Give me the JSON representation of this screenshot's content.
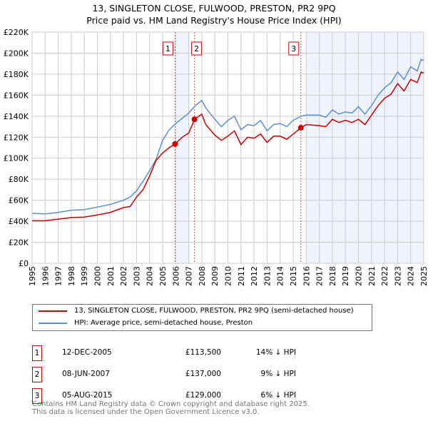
{
  "title": "13, SINGLETON CLOSE, FULWOOD, PRESTON, PR2 9PQ",
  "subtitle": "Price paid vs. HM Land Registry's House Price Index (HPI)",
  "chart_data": {
    "type": "line",
    "title": "13, SINGLETON CLOSE, FULWOOD, PRESTON, PR2 9PQ",
    "subtitle": "Price paid vs. HM Land Registry's House Price Index (HPI)",
    "xlim": [
      1995,
      2025
    ],
    "ylim": [
      0,
      220000
    ],
    "x_ticks": [
      "1995",
      "1996",
      "1997",
      "1998",
      "1999",
      "2000",
      "2001",
      "2002",
      "2003",
      "2004",
      "2005",
      "2006",
      "2007",
      "2008",
      "2009",
      "2010",
      "2011",
      "2012",
      "2013",
      "2014",
      "2015",
      "2016",
      "2017",
      "2018",
      "2019",
      "2020",
      "2021",
      "2022",
      "2023",
      "2024",
      "2025"
    ],
    "y_ticks": [
      "£0",
      "£20K",
      "£40K",
      "£60K",
      "£80K",
      "£100K",
      "£120K",
      "£140K",
      "£160K",
      "£180K",
      "£200K",
      "£220K"
    ],
    "grid": true,
    "colors": {
      "property": "#cc0000",
      "hpi": "#5b8fd4",
      "shade": "#eef3fc"
    },
    "shaded_ranges": [
      [
        2005.95,
        2007.05
      ],
      [
        2016.0,
        2025
      ]
    ],
    "series": [
      {
        "name": "13, SINGLETON CLOSE, FULWOOD, PRESTON, PR2 9PQ (semi-detached house)",
        "color": "#cc0000",
        "x": [
          1995,
          1996,
          1997,
          1998,
          1999,
          2000,
          2001,
          2002,
          2002.5,
          2003,
          2003.5,
          2004,
          2004.5,
          2005,
          2005.5,
          2005.95,
          2006.5,
          2007,
          2007.44,
          2008,
          2008.3,
          2009,
          2009.5,
          2010,
          2010.5,
          2011,
          2011.5,
          2012,
          2012.5,
          2013,
          2013.5,
          2014,
          2014.5,
          2015,
          2015.6,
          2016,
          2017,
          2017.5,
          2018,
          2018.5,
          2019,
          2019.5,
          2020,
          2020.5,
          2021,
          2021.5,
          2022,
          2022.5,
          2023,
          2023.5,
          2024,
          2024.5,
          2024.8,
          2025
        ],
        "y": [
          40500,
          40500,
          42000,
          43500,
          44000,
          46000,
          48500,
          53000,
          54000,
          63000,
          70000,
          83000,
          98000,
          105000,
          110000,
          113500,
          120000,
          124000,
          137000,
          142000,
          132000,
          122000,
          117000,
          121000,
          126000,
          113000,
          120000,
          119000,
          123000,
          115000,
          121000,
          121000,
          118000,
          123000,
          129000,
          132000,
          131000,
          130000,
          137000,
          134000,
          136000,
          134000,
          137000,
          132000,
          141000,
          150000,
          157000,
          161000,
          171000,
          164000,
          175000,
          172000,
          182000,
          181000
        ]
      },
      {
        "name": "HPI: Average price, semi-detached house, Preston",
        "color": "#5b8fd4",
        "x": [
          1995,
          1996,
          1997,
          1998,
          1999,
          2000,
          2001,
          2002,
          2002.5,
          2003,
          2003.5,
          2004,
          2004.5,
          2005,
          2005.5,
          2006,
          2006.5,
          2007,
          2007.5,
          2008,
          2008.3,
          2009,
          2009.5,
          2010,
          2010.5,
          2011,
          2011.5,
          2012,
          2012.5,
          2013,
          2013.5,
          2014,
          2014.5,
          2015,
          2015.6,
          2016,
          2017,
          2017.5,
          2018,
          2018.5,
          2019,
          2019.5,
          2020,
          2020.5,
          2021,
          2021.5,
          2022,
          2022.5,
          2023,
          2023.5,
          2024,
          2024.5,
          2024.8,
          2025
        ],
        "y": [
          47500,
          47000,
          48500,
          50500,
          51000,
          53500,
          56000,
          60000,
          63000,
          69000,
          78000,
          88000,
          99000,
          117000,
          127000,
          133000,
          138000,
          143000,
          150000,
          155000,
          148000,
          137000,
          130000,
          136000,
          140000,
          127000,
          132000,
          131000,
          136000,
          126000,
          132000,
          133000,
          130000,
          136000,
          140000,
          141000,
          141000,
          139000,
          146000,
          142000,
          144000,
          143000,
          149000,
          142000,
          150000,
          160000,
          167000,
          172000,
          182000,
          175000,
          187000,
          183000,
          194000,
          193000
        ]
      }
    ],
    "sales": [
      {
        "num": "1",
        "x": 2005.95,
        "date": "12-DEC-2005",
        "price": "£113,500",
        "value": 113500,
        "delta": "14% ↓ HPI"
      },
      {
        "num": "2",
        "x": 2007.44,
        "date": "08-JUN-2007",
        "price": "£137,000",
        "value": 137000,
        "delta": "9% ↓ HPI"
      },
      {
        "num": "3",
        "x": 2015.59,
        "date": "05-AUG-2015",
        "price": "£129,000",
        "value": 129000,
        "delta": "6% ↓ HPI"
      }
    ]
  },
  "legend": {
    "property": "13, SINGLETON CLOSE, FULWOOD, PRESTON, PR2 9PQ (semi-detached house)",
    "hpi": "HPI: Average price, semi-detached house, Preston"
  },
  "footer": {
    "line1": "Contains HM Land Registry data © Crown copyright and database right 2025.",
    "line2": "This data is licensed under the Open Government Licence v3.0."
  }
}
